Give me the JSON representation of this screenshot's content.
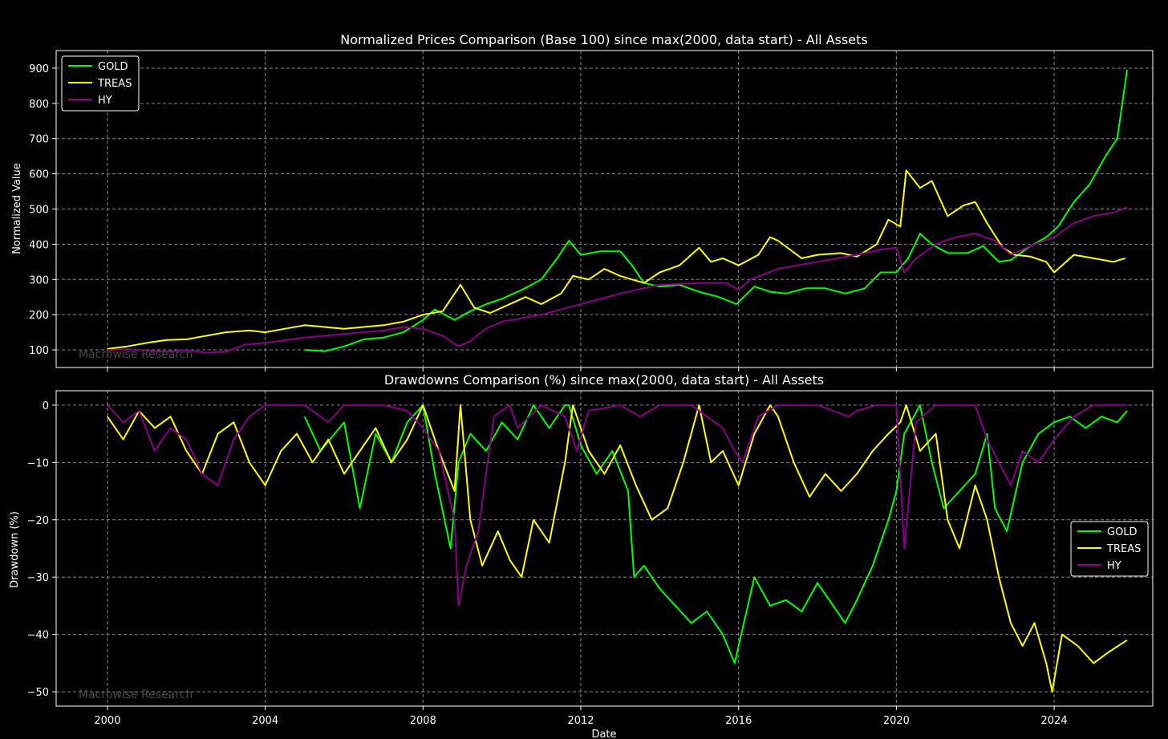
{
  "chart_data": [
    {
      "type": "line",
      "title": "Normalized Prices Comparison (Base 100) since max(2000, data start) - All Assets",
      "xlabel": "",
      "ylabel": "Normalized Value",
      "xlim": [
        1998.7,
        2026.5
      ],
      "ylim": [
        50,
        950
      ],
      "x_ticks": [
        2000,
        2004,
        2008,
        2012,
        2016,
        2020,
        2024
      ],
      "x_tick_labels": [
        "",
        "",
        "",
        "",
        "",
        "",
        ""
      ],
      "y_ticks": [
        100,
        200,
        300,
        400,
        500,
        600,
        700,
        800,
        900
      ],
      "y_tick_labels": [
        "100",
        "200",
        "300",
        "400",
        "500",
        "600",
        "700",
        "800",
        "900"
      ],
      "grid": true,
      "legend": "top-left",
      "watermark": "Macrowise Research",
      "series": [
        {
          "name": "GOLD",
          "color": "#00ff00",
          "x": [
            2005.0,
            2005.5,
            2006.0,
            2006.5,
            2007.0,
            2007.5,
            2008.0,
            2008.3,
            2008.8,
            2009.2,
            2009.6,
            2010.0,
            2010.5,
            2011.0,
            2011.4,
            2011.7,
            2012.0,
            2012.5,
            2013.0,
            2013.3,
            2013.6,
            2014.0,
            2014.5,
            2015.0,
            2015.5,
            2015.95,
            2016.4,
            2016.8,
            2017.2,
            2017.7,
            2018.2,
            2018.7,
            2019.2,
            2019.6,
            2020.0,
            2020.3,
            2020.6,
            2020.9,
            2021.3,
            2021.8,
            2022.2,
            2022.6,
            2022.9,
            2023.4,
            2023.8,
            2024.1,
            2024.5,
            2024.9,
            2025.3,
            2025.6,
            2025.85
          ],
          "y": [
            100,
            96,
            110,
            130,
            135,
            150,
            185,
            215,
            185,
            210,
            230,
            245,
            270,
            300,
            360,
            410,
            370,
            380,
            380,
            340,
            290,
            280,
            285,
            265,
            250,
            230,
            280,
            265,
            260,
            275,
            275,
            260,
            275,
            320,
            320,
            360,
            430,
            400,
            375,
            375,
            395,
            350,
            355,
            395,
            420,
            450,
            520,
            570,
            650,
            700,
            895
          ]
        },
        {
          "name": "TREAS",
          "color": "#ffff00",
          "x": [
            2000.0,
            2000.5,
            2001.0,
            2001.5,
            2002.0,
            2002.5,
            2003.0,
            2003.6,
            2004.0,
            2004.5,
            2005.0,
            2005.5,
            2006.0,
            2006.5,
            2007.0,
            2007.5,
            2008.0,
            2008.5,
            2008.95,
            2009.3,
            2009.7,
            2010.0,
            2010.6,
            2011.0,
            2011.5,
            2011.8,
            2012.2,
            2012.6,
            2013.0,
            2013.6,
            2014.0,
            2014.5,
            2015.0,
            2015.3,
            2015.6,
            2016.0,
            2016.5,
            2016.8,
            2017.0,
            2017.6,
            2018.0,
            2018.6,
            2019.0,
            2019.5,
            2019.8,
            2020.1,
            2020.25,
            2020.6,
            2020.9,
            2021.3,
            2021.7,
            2022.0,
            2022.3,
            2022.7,
            2023.0,
            2023.4,
            2023.8,
            2024.0,
            2024.5,
            2025.0,
            2025.5,
            2025.8
          ],
          "y": [
            103,
            110,
            120,
            128,
            130,
            140,
            150,
            155,
            150,
            160,
            170,
            165,
            160,
            165,
            170,
            180,
            200,
            210,
            285,
            220,
            205,
            220,
            250,
            230,
            260,
            310,
            300,
            330,
            310,
            290,
            320,
            340,
            390,
            350,
            360,
            340,
            370,
            420,
            410,
            360,
            370,
            375,
            365,
            400,
            470,
            450,
            610,
            560,
            580,
            480,
            510,
            520,
            460,
            390,
            370,
            365,
            350,
            320,
            370,
            360,
            350,
            360
          ]
        },
        {
          "name": "HY",
          "color": "#8b008b",
          "x": [
            2000.0,
            2000.5,
            2001.0,
            2001.5,
            2002.0,
            2002.5,
            2003.0,
            2003.5,
            2004.0,
            2005.0,
            2006.0,
            2007.0,
            2007.5,
            2008.0,
            2008.5,
            2008.9,
            2009.2,
            2009.6,
            2010.0,
            2010.5,
            2011.0,
            2012.0,
            2013.0,
            2014.0,
            2015.0,
            2015.7,
            2016.0,
            2016.3,
            2017.0,
            2018.0,
            2019.0,
            2019.6,
            2020.0,
            2020.2,
            2020.5,
            2021.0,
            2021.5,
            2022.0,
            2022.5,
            2022.9,
            2023.5,
            2024.0,
            2024.5,
            2025.0,
            2025.5,
            2025.85
          ],
          "y": [
            100,
            102,
            98,
            95,
            100,
            92,
            95,
            115,
            120,
            135,
            145,
            155,
            165,
            160,
            140,
            110,
            125,
            160,
            180,
            190,
            200,
            230,
            260,
            285,
            290,
            290,
            270,
            300,
            330,
            350,
            370,
            385,
            390,
            320,
            360,
            400,
            420,
            430,
            410,
            370,
            400,
            420,
            460,
            480,
            490,
            505
          ]
        }
      ]
    },
    {
      "type": "line",
      "title": "Drawdowns Comparison (%) since max(2000, data start) - All Assets",
      "xlabel": "Date",
      "ylabel": "Drawdown (%)",
      "xlim": [
        1998.7,
        2026.5
      ],
      "ylim": [
        -52.5,
        2.5
      ],
      "x_ticks": [
        2000,
        2004,
        2008,
        2012,
        2016,
        2020,
        2024
      ],
      "x_tick_labels": [
        "2000",
        "2004",
        "2008",
        "2012",
        "2016",
        "2020",
        "2024"
      ],
      "y_ticks": [
        0,
        -10,
        -20,
        -30,
        -40,
        -50
      ],
      "y_tick_labels": [
        "0",
        "−10",
        "−20",
        "−30",
        "−40",
        "−50"
      ],
      "grid": true,
      "legend": "right",
      "watermark": "Macrowise Research",
      "series": [
        {
          "name": "GOLD",
          "color": "#00ff00",
          "x": [
            2005.0,
            2005.4,
            2006.0,
            2006.4,
            2006.8,
            2007.2,
            2007.6,
            2008.0,
            2008.3,
            2008.7,
            2008.9,
            2009.2,
            2009.6,
            2010.0,
            2010.4,
            2010.8,
            2011.2,
            2011.6,
            2011.7,
            2012.0,
            2012.4,
            2012.8,
            2013.2,
            2013.35,
            2013.6,
            2014.0,
            2014.4,
            2014.8,
            2015.2,
            2015.6,
            2015.9,
            2016.0,
            2016.4,
            2016.8,
            2017.2,
            2017.6,
            2018.0,
            2018.4,
            2018.7,
            2019.0,
            2019.4,
            2019.8,
            2020.0,
            2020.2,
            2020.6,
            2020.9,
            2021.2,
            2021.6,
            2022.0,
            2022.3,
            2022.5,
            2022.8,
            2023.2,
            2023.6,
            2024.0,
            2024.4,
            2024.8,
            2025.2,
            2025.6,
            2025.85
          ],
          "y": [
            -2,
            -8,
            -3,
            -18,
            -5,
            -10,
            -3,
            0,
            -12,
            -25,
            -10,
            -5,
            -8,
            -3,
            -6,
            0,
            -4,
            0,
            0,
            -7,
            -12,
            -8,
            -15,
            -30,
            -28,
            -32,
            -35,
            -38,
            -36,
            -40,
            -45,
            -42,
            -30,
            -35,
            -34,
            -36,
            -31,
            -35,
            -38,
            -34,
            -28,
            -20,
            -15,
            -5,
            0,
            -10,
            -18,
            -15,
            -12,
            -5,
            -18,
            -22,
            -10,
            -5,
            -3,
            -2,
            -4,
            -2,
            -3,
            -1
          ]
        },
        {
          "name": "TREAS",
          "color": "#ffff00",
          "x": [
            2000.0,
            2000.4,
            2000.8,
            2001.2,
            2001.6,
            2002.0,
            2002.4,
            2002.8,
            2003.2,
            2003.6,
            2004.0,
            2004.4,
            2004.8,
            2005.2,
            2005.6,
            2006.0,
            2006.4,
            2006.8,
            2007.2,
            2007.6,
            2008.0,
            2008.4,
            2008.8,
            2008.95,
            2009.2,
            2009.5,
            2009.9,
            2010.2,
            2010.5,
            2010.8,
            2011.2,
            2011.6,
            2011.8,
            2012.2,
            2012.6,
            2013.0,
            2013.4,
            2013.8,
            2014.2,
            2014.6,
            2015.0,
            2015.3,
            2015.6,
            2016.0,
            2016.4,
            2016.8,
            2017.0,
            2017.4,
            2017.8,
            2018.2,
            2018.6,
            2019.0,
            2019.4,
            2019.8,
            2020.1,
            2020.25,
            2020.6,
            2021.0,
            2021.3,
            2021.6,
            2022.0,
            2022.3,
            2022.6,
            2022.9,
            2023.2,
            2023.5,
            2023.8,
            2023.95,
            2024.2,
            2024.6,
            2025.0,
            2025.4,
            2025.85
          ],
          "y": [
            -2,
            -6,
            -1,
            -4,
            -2,
            -8,
            -12,
            -5,
            -3,
            -10,
            -14,
            -8,
            -5,
            -10,
            -6,
            -12,
            -8,
            -4,
            -10,
            -6,
            0,
            -8,
            -15,
            0,
            -20,
            -28,
            -22,
            -27,
            -30,
            -20,
            -24,
            -10,
            0,
            -8,
            -12,
            -7,
            -14,
            -20,
            -18,
            -10,
            0,
            -10,
            -8,
            -14,
            -5,
            0,
            -2,
            -10,
            -16,
            -12,
            -15,
            -12,
            -8,
            -5,
            -3,
            0,
            -8,
            -5,
            -20,
            -25,
            -14,
            -20,
            -30,
            -38,
            -42,
            -38,
            -45,
            -50,
            -40,
            -42,
            -45,
            -43,
            -41
          ]
        },
        {
          "name": "HY",
          "color": "#8b008b",
          "x": [
            2000.0,
            2000.4,
            2000.8,
            2001.2,
            2001.6,
            2002.0,
            2002.4,
            2002.8,
            2003.2,
            2003.6,
            2004.0,
            2005.0,
            2005.6,
            2006.0,
            2007.0,
            2007.6,
            2008.0,
            2008.4,
            2008.8,
            2008.9,
            2009.1,
            2009.4,
            2009.8,
            2010.2,
            2010.4,
            2011.0,
            2011.6,
            2011.9,
            2012.2,
            2013.0,
            2013.5,
            2014.0,
            2014.8,
            2015.2,
            2015.6,
            2015.9,
            2016.1,
            2016.5,
            2017.0,
            2018.0,
            2018.8,
            2019.0,
            2019.5,
            2020.0,
            2020.2,
            2020.5,
            2021.0,
            2022.0,
            2022.3,
            2022.6,
            2022.9,
            2023.2,
            2023.6,
            2024.0,
            2024.5,
            2025.0,
            2025.5,
            2025.85
          ],
          "y": [
            0,
            -3,
            -1,
            -8,
            -4,
            -6,
            -12,
            -14,
            -6,
            -2,
            0,
            0,
            -3,
            0,
            0,
            -1,
            -4,
            -8,
            -20,
            -35,
            -28,
            -22,
            -2,
            0,
            -4,
            0,
            -2,
            -8,
            -1,
            0,
            -2,
            0,
            0,
            -2,
            -4,
            -8,
            -10,
            -2,
            0,
            0,
            -2,
            -1,
            0,
            0,
            -25,
            -3,
            0,
            0,
            -6,
            -10,
            -14,
            -8,
            -10,
            -6,
            -2,
            0,
            0,
            0
          ]
        }
      ]
    }
  ]
}
